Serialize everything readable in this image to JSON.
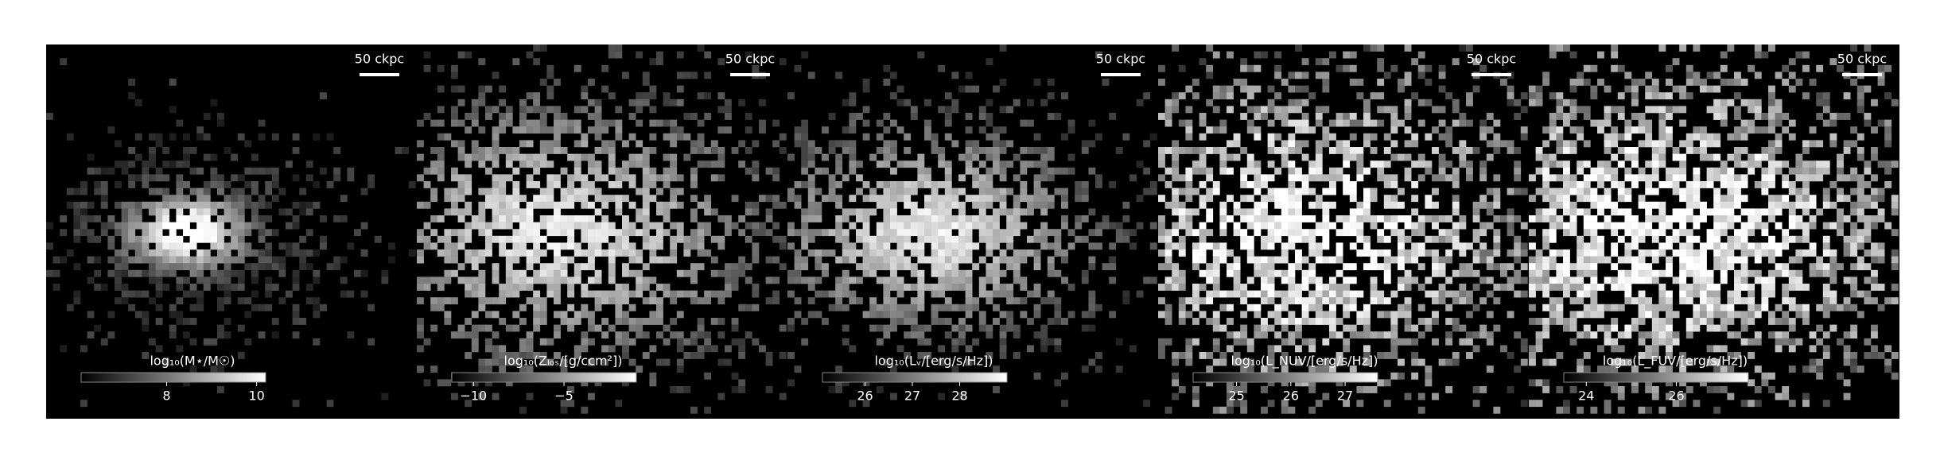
{
  "chart_data": [
    {
      "type": "heatmap",
      "scale_bar": "50 ckpc",
      "colorbar": {
        "label": "log₁₀(M⋆/M☉)",
        "lim": [
          6.1,
          10.2
        ],
        "ticks": [
          8,
          10
        ]
      }
    },
    {
      "type": "heatmap",
      "scale_bar": "50 ckpc",
      "colorbar": {
        "label": "log₁₀(Zₗₒₛ/[g/ccm²])",
        "lim": [
          -11.2,
          -1.0
        ],
        "ticks": [
          {
            "value": -10,
            "label": "−10"
          },
          {
            "value": -5,
            "label": "−5"
          }
        ]
      }
    },
    {
      "type": "heatmap",
      "scale_bar": "50 ckpc",
      "colorbar": {
        "label": "log₁₀(Lᵥ/[erg/s/Hz])",
        "lim": [
          25.1,
          29.0
        ],
        "ticks": [
          26,
          27,
          28
        ]
      }
    },
    {
      "type": "heatmap",
      "scale_bar": "50 ckpc",
      "colorbar": {
        "label": "log₁₀(L_NUV/[erg/s/Hz])",
        "lim": [
          24.2,
          27.6
        ],
        "ticks": [
          25,
          26,
          27
        ]
      }
    },
    {
      "type": "heatmap",
      "scale_bar": "50 ckpc",
      "colorbar": {
        "label": "log₁₀(L_FUV/[erg/s/Hz])",
        "lim": [
          23.5,
          27.6
        ],
        "ticks": [
          24,
          26
        ]
      }
    }
  ]
}
